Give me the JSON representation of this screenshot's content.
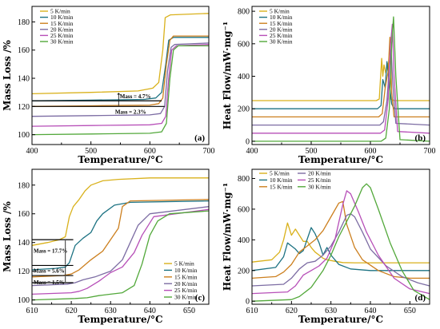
{
  "colors": {
    "5 K/min": "#d9b11b",
    "10 K/min": "#1c7282",
    "15 K/min": "#cc7f1e",
    "20 K/min": "#7c6ca3",
    "25 K/min": "#b74fb8",
    "30 K/min": "#52a83a"
  },
  "chart_data": [
    {
      "panel": "(a)",
      "type": "line",
      "xlabel": "Temperature/°C",
      "ylabel": "Mass Loss /%",
      "xlim": [
        400,
        700
      ],
      "ylim": [
        93,
        191
      ],
      "xticks": [
        400,
        500,
        600,
        700
      ],
      "xminor": [
        450,
        550,
        650
      ],
      "yticks": [
        100,
        120,
        140,
        160,
        180
      ],
      "legend": [
        "5 K/min",
        "10 K/min",
        "15 K/min",
        "20 K/min",
        "25 K/min",
        "30 K/min"
      ],
      "legend_position": "top-left",
      "annotations": [
        {
          "text": "Mass = 4.7%",
          "x": 549,
          "y": 127
        },
        {
          "text": "Mass = 2.3%",
          "x": 541,
          "y": 116
        }
      ],
      "series": [
        {
          "name": "5 K/min",
          "x": [
            400,
            500,
            580,
            605,
            615,
            622,
            626,
            635,
            700
          ],
          "y": [
            129,
            130,
            131,
            133,
            137,
            160,
            183,
            185,
            186
          ]
        },
        {
          "name": "10 K/min",
          "x": [
            400,
            500,
            590,
            610,
            620,
            627,
            632,
            640,
            700
          ],
          "y": [
            124,
            124.5,
            125,
            126,
            130,
            150,
            167,
            169,
            169
          ]
        },
        {
          "name": "15 K/min",
          "x": [
            400,
            500,
            600,
            615,
            622,
            628,
            634,
            640,
            700
          ],
          "y": [
            120,
            120.5,
            121,
            122,
            126,
            150,
            167,
            170,
            170
          ]
        },
        {
          "name": "20 K/min",
          "x": [
            400,
            500,
            600,
            618,
            625,
            630,
            636,
            642,
            700
          ],
          "y": [
            113,
            113.5,
            114,
            115,
            120,
            145,
            162,
            164,
            165
          ]
        },
        {
          "name": "25 K/min",
          "x": [
            400,
            500,
            600,
            620,
            627,
            632,
            637,
            645,
            700
          ],
          "y": [
            106,
            106.5,
            107,
            108,
            113,
            140,
            160,
            163,
            164
          ]
        },
        {
          "name": "30 K/min",
          "x": [
            400,
            500,
            600,
            620,
            628,
            634,
            640,
            648,
            700
          ],
          "y": [
            100,
            100.5,
            101,
            102,
            108,
            140,
            160,
            163,
            163
          ]
        }
      ]
    },
    {
      "panel": "(b)",
      "type": "line",
      "xlabel": "Temperature/°C",
      "ylabel": "Heat Flow/mW·mg⁻¹",
      "xlim": [
        400,
        700
      ],
      "ylim": [
        -20,
        830
      ],
      "xticks": [
        400,
        500,
        600,
        700
      ],
      "xminor": [
        450,
        550,
        650
      ],
      "yticks": [
        0,
        200,
        400,
        600,
        800
      ],
      "legend": [
        "5 K/min",
        "10 K/min",
        "15 K/min",
        "20 K/min",
        "25 K/min",
        "30 K/min"
      ],
      "legend_position": "top-left",
      "series": [
        {
          "name": "5 K/min",
          "x": [
            400,
            610,
            615,
            619,
            621,
            623,
            626,
            630,
            634,
            640,
            700
          ],
          "y": [
            250,
            250,
            260,
            510,
            400,
            470,
            420,
            480,
            260,
            250,
            250
          ]
        },
        {
          "name": "10 K/min",
          "x": [
            400,
            612,
            618,
            621,
            625,
            628,
            632,
            636,
            640,
            700
          ],
          "y": [
            200,
            200,
            220,
            380,
            330,
            490,
            350,
            230,
            200,
            200
          ]
        },
        {
          "name": "15 K/min",
          "x": [
            400,
            614,
            620,
            625,
            630,
            633,
            636,
            640,
            700
          ],
          "y": [
            150,
            150,
            170,
            330,
            430,
            640,
            300,
            150,
            150
          ]
        },
        {
          "name": "20 K/min",
          "x": [
            400,
            616,
            622,
            628,
            632,
            635,
            638,
            643,
            700
          ],
          "y": [
            100,
            100,
            120,
            250,
            460,
            560,
            350,
            110,
            100
          ]
        },
        {
          "name": "25 K/min",
          "x": [
            400,
            617,
            624,
            630,
            634,
            637,
            640,
            646,
            700
          ],
          "y": [
            50,
            50,
            70,
            260,
            600,
            720,
            400,
            60,
            50
          ]
        },
        {
          "name": "30 K/min",
          "x": [
            400,
            618,
            626,
            632,
            636,
            639,
            643,
            650,
            700
          ],
          "y": [
            0,
            0,
            20,
            200,
            600,
            765,
            400,
            10,
            0
          ]
        }
      ]
    },
    {
      "panel": "(c)",
      "type": "line",
      "xlabel": "Temperature/°C",
      "ylabel": "Mass Loss /%",
      "xlim": [
        610,
        655
      ],
      "ylim": [
        97,
        191
      ],
      "xticks": [
        610,
        620,
        630,
        640,
        650
      ],
      "xminor": [
        615,
        625,
        635,
        645,
        655
      ],
      "yticks": [
        100,
        120,
        140,
        160,
        180
      ],
      "legend": [
        "5 K/min",
        "10 K/min",
        "15 K/min",
        "20 K/min",
        "25 K/min",
        "30 K/min"
      ],
      "legend_position": "bottom-right",
      "annotations": [
        {
          "text": "Mass = 17.7%",
          "x": 617,
          "y": 134
        },
        {
          "text": "Mass = 5.6%",
          "x": 617,
          "y": 120
        },
        {
          "text": "Mass = 1.5%",
          "x": 617,
          "y": 112
        }
      ],
      "series": [
        {
          "name": "5 K/min",
          "x": [
            610,
            614,
            617,
            618.5,
            619.5,
            620.5,
            622,
            623.5,
            625,
            628,
            632,
            640,
            655
          ],
          "y": [
            138,
            140,
            142,
            144,
            158,
            165,
            170,
            176,
            180,
            183,
            184,
            185,
            185
          ]
        },
        {
          "name": "10 K/min",
          "x": [
            610,
            616,
            618.5,
            619.5,
            621,
            623,
            625,
            626.5,
            628,
            631,
            635,
            655
          ],
          "y": [
            121,
            122,
            123,
            126,
            138,
            143,
            147,
            155,
            160,
            166,
            168,
            169
          ]
        },
        {
          "name": "15 K/min",
          "x": [
            610,
            618,
            620,
            622,
            625,
            628,
            630,
            632,
            633,
            635,
            655
          ],
          "y": [
            116,
            117,
            118,
            121,
            128,
            134,
            142,
            150,
            165,
            169,
            170
          ]
        },
        {
          "name": "20 K/min",
          "x": [
            610,
            619,
            621,
            623,
            626,
            630,
            633,
            635,
            637,
            640,
            655
          ],
          "y": [
            110,
            111,
            112,
            114,
            116,
            120,
            128,
            140,
            152,
            160,
            165
          ]
        },
        {
          "name": "25 K/min",
          "x": [
            610,
            620,
            622,
            624,
            627,
            630,
            633,
            636,
            638,
            641,
            655
          ],
          "y": [
            104,
            105,
            106,
            108,
            113,
            119,
            123,
            133,
            145,
            158,
            163
          ]
        },
        {
          "name": "30 K/min",
          "x": [
            610,
            621,
            624,
            627,
            630,
            633,
            636,
            638,
            640,
            642,
            645,
            655
          ],
          "y": [
            100,
            101,
            101.5,
            103,
            104,
            105,
            110,
            125,
            145,
            155,
            160,
            162
          ]
        }
      ]
    },
    {
      "panel": "(d)",
      "type": "line",
      "xlabel": "Temperature/°C",
      "ylabel": "Heat Flow/mW·mg⁻¹",
      "xlim": [
        610,
        655
      ],
      "ylim": [
        -20,
        860
      ],
      "xticks": [
        610,
        620,
        630,
        640,
        650
      ],
      "xminor": [
        615,
        625,
        635,
        645,
        655
      ],
      "yticks": [
        0,
        200,
        400,
        600,
        800
      ],
      "legend": [
        "5 K/min",
        "10 K/min",
        "15 K/min",
        "20 K/min",
        "25 K/min",
        "30 K/min"
      ],
      "legend_position": "top-left",
      "series": [
        {
          "name": "5 K/min",
          "x": [
            610,
            615,
            617,
            618,
            619,
            619.5,
            620,
            621,
            622,
            623,
            624,
            625,
            626,
            627,
            628,
            629,
            631,
            633,
            636,
            655
          ],
          "y": [
            255,
            270,
            320,
            400,
            510,
            470,
            430,
            470,
            430,
            390,
            390,
            350,
            320,
            300,
            280,
            270,
            260,
            252,
            250,
            250
          ]
        },
        {
          "name": "10 K/min",
          "x": [
            610,
            616,
            618,
            619,
            620,
            621,
            622,
            623,
            625,
            626,
            627,
            628,
            629,
            630,
            632,
            635,
            640,
            655
          ],
          "y": [
            200,
            220,
            290,
            380,
            360,
            340,
            310,
            330,
            480,
            440,
            380,
            300,
            350,
            300,
            240,
            210,
            200,
            200
          ]
        },
        {
          "name": "15 K/min",
          "x": [
            610,
            616,
            618,
            620,
            622,
            624,
            626,
            628,
            630,
            632,
            633,
            634,
            636,
            638,
            642,
            646,
            650,
            655
          ],
          "y": [
            150,
            160,
            190,
            240,
            320,
            360,
            400,
            460,
            550,
            640,
            650,
            500,
            350,
            270,
            200,
            160,
            150,
            150
          ]
        },
        {
          "name": "20 K/min",
          "x": [
            610,
            618,
            620,
            622,
            624,
            626,
            628,
            630,
            632,
            634,
            635,
            636,
            638,
            640,
            644,
            648,
            652,
            655
          ],
          "y": [
            100,
            110,
            150,
            210,
            250,
            260,
            300,
            360,
            450,
            560,
            570,
            550,
            450,
            340,
            230,
            160,
            120,
            100
          ]
        },
        {
          "name": "25 K/min",
          "x": [
            610,
            619,
            621,
            623,
            625,
            627,
            629,
            631,
            633,
            634,
            635,
            637,
            639,
            642,
            646,
            650,
            655
          ],
          "y": [
            50,
            60,
            100,
            170,
            200,
            230,
            280,
            400,
            630,
            720,
            700,
            580,
            450,
            300,
            150,
            80,
            50
          ]
        },
        {
          "name": "30 K/min",
          "x": [
            610,
            620,
            622,
            625,
            628,
            630,
            632,
            634,
            636,
            638,
            639,
            640,
            642,
            645,
            648,
            651,
            655
          ],
          "y": [
            0,
            10,
            30,
            90,
            200,
            300,
            420,
            520,
            620,
            740,
            765,
            740,
            600,
            380,
            200,
            70,
            10
          ]
        }
      ]
    }
  ]
}
